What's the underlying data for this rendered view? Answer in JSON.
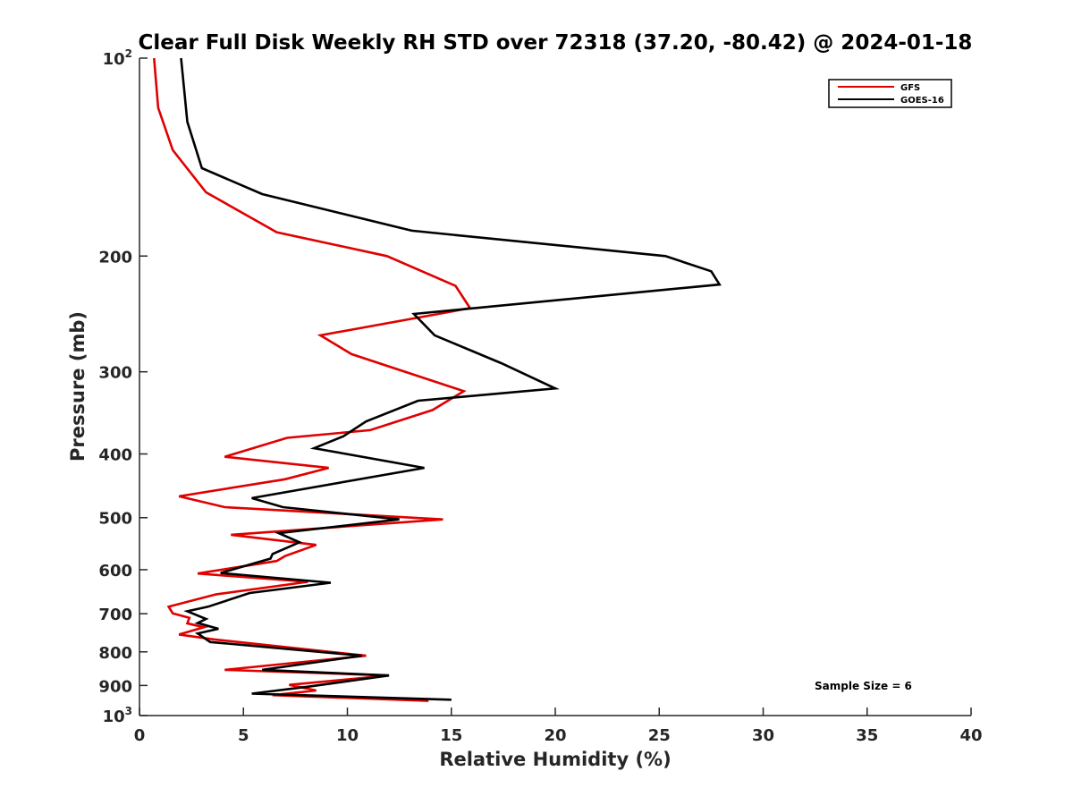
{
  "chart_data": {
    "type": "line",
    "title": "Clear Full Disk Weekly RH STD over 72318 (37.20, -80.42) @ 2024-01-18",
    "xlabel": "Relative Humidity (%)",
    "ylabel": "Pressure (mb)",
    "xlim": [
      0,
      40
    ],
    "ylim": [
      100,
      1000
    ],
    "yscale": "log",
    "y_reversed": true,
    "grid": false,
    "legend_position": "top-right",
    "x_ticks": [
      "0",
      "5",
      "10",
      "15",
      "20",
      "25",
      "30",
      "35",
      "40"
    ],
    "y_ticks": [
      {
        "value": 100,
        "base": "10",
        "exp": "2"
      },
      {
        "value": 200,
        "label": "200"
      },
      {
        "value": 300,
        "label": "300"
      },
      {
        "value": 400,
        "label": "400"
      },
      {
        "value": 500,
        "label": "500"
      },
      {
        "value": 600,
        "label": "600"
      },
      {
        "value": 700,
        "label": "700"
      },
      {
        "value": 800,
        "label": "800"
      },
      {
        "value": 900,
        "label": "900"
      },
      {
        "value": 1000,
        "base": "10",
        "exp": "3"
      }
    ],
    "annotation": "Sample Size = 6",
    "series": [
      {
        "name": "GFS",
        "color": "#e00000",
        "points": [
          [
            0.7,
            100
          ],
          [
            0.9,
            119
          ],
          [
            1.6,
            138
          ],
          [
            3.2,
            160
          ],
          [
            6.6,
            184
          ],
          [
            11.9,
            200
          ],
          [
            15.2,
            222
          ],
          [
            15.9,
            240
          ],
          [
            8.7,
            264
          ],
          [
            10.2,
            282
          ],
          [
            15.6,
            321
          ],
          [
            14.1,
            343
          ],
          [
            11.1,
            368
          ],
          [
            7.1,
            378
          ],
          [
            4.1,
            404
          ],
          [
            9.1,
            420
          ],
          [
            7.0,
            437
          ],
          [
            1.9,
            464
          ],
          [
            4.1,
            482
          ],
          [
            14.6,
            503
          ],
          [
            4.4,
            531
          ],
          [
            8.5,
            550
          ],
          [
            7.0,
            572
          ],
          [
            6.6,
            582
          ],
          [
            2.8,
            608
          ],
          [
            8.1,
            626
          ],
          [
            3.7,
            654
          ],
          [
            1.4,
            683
          ],
          [
            1.6,
            699
          ],
          [
            2.4,
            710
          ],
          [
            2.3,
            724
          ],
          [
            3.1,
            734
          ],
          [
            1.9,
            753
          ],
          [
            3.6,
            766
          ],
          [
            10.9,
            811
          ],
          [
            4.1,
            852
          ],
          [
            12.0,
            869
          ],
          [
            7.2,
            898
          ],
          [
            8.5,
            916
          ],
          [
            6.4,
            931
          ],
          [
            13.9,
            950
          ]
        ]
      },
      {
        "name": "GOES-16",
        "color": "#000000",
        "points": [
          [
            2.0,
            100
          ],
          [
            2.3,
            125
          ],
          [
            3.0,
            147
          ],
          [
            5.9,
            161
          ],
          [
            13.1,
            183
          ],
          [
            25.3,
            200
          ],
          [
            27.5,
            211
          ],
          [
            27.9,
            221
          ],
          [
            13.2,
            245
          ],
          [
            14.2,
            264
          ],
          [
            17.4,
            291
          ],
          [
            20.0,
            318
          ],
          [
            13.4,
            332
          ],
          [
            10.9,
            357
          ],
          [
            9.8,
            376
          ],
          [
            8.4,
            392
          ],
          [
            13.7,
            420
          ],
          [
            5.4,
            467
          ],
          [
            6.9,
            482
          ],
          [
            12.5,
            503
          ],
          [
            6.7,
            528
          ],
          [
            7.7,
            545
          ],
          [
            6.4,
            568
          ],
          [
            6.3,
            577
          ],
          [
            3.9,
            607
          ],
          [
            9.2,
            628
          ],
          [
            5.3,
            651
          ],
          [
            3.3,
            683
          ],
          [
            2.3,
            694
          ],
          [
            3.2,
            713
          ],
          [
            2.8,
            723
          ],
          [
            3.8,
            738
          ],
          [
            2.8,
            750
          ],
          [
            3.4,
            773
          ],
          [
            10.7,
            811
          ],
          [
            5.9,
            852
          ],
          [
            12.0,
            869
          ],
          [
            8.2,
            903
          ],
          [
            5.4,
            926
          ],
          [
            15.0,
            946
          ]
        ]
      }
    ]
  }
}
